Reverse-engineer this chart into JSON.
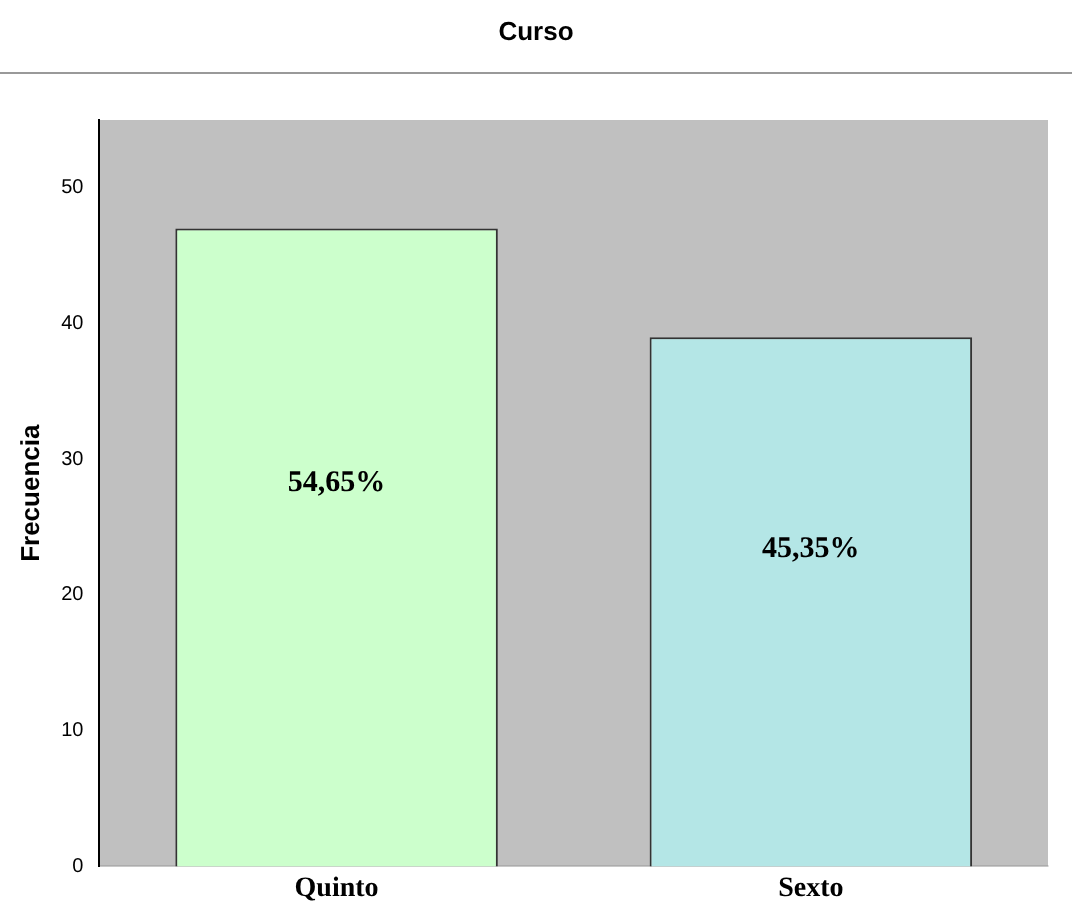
{
  "chart_data": {
    "type": "bar",
    "title": "Curso",
    "ylabel": "Frecuencia",
    "categories": [
      "Quinto",
      "Sexto"
    ],
    "values": [
      47,
      39
    ],
    "colors": [
      "#ccffcc",
      "#b4e6e6"
    ],
    "annotations": [
      "54,65%",
      "45,35%"
    ],
    "ylim": [
      0,
      55
    ],
    "yticks": [
      0,
      10,
      20,
      30,
      40,
      50
    ],
    "grid": false,
    "legend": false
  }
}
